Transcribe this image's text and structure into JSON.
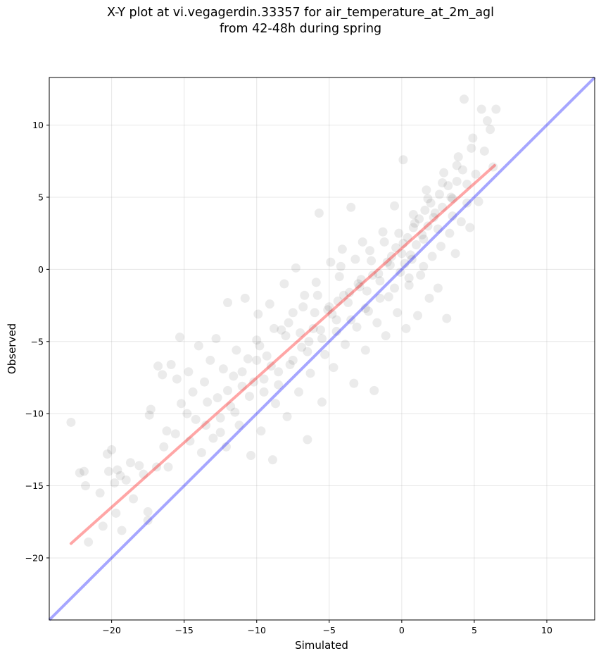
{
  "chart_data": {
    "type": "scatter",
    "title": "X-Y plot at vi.vegagerdin.33357 for air_temperature_at_2m_agl",
    "subtitle": "from 42-48h during spring",
    "xlabel": "Simulated",
    "ylabel": "Observed",
    "xlim": [
      -24.3,
      13.3
    ],
    "ylim": [
      -24.3,
      13.3
    ],
    "x_ticks": [
      -20,
      -15,
      -10,
      -5,
      0,
      5,
      10
    ],
    "y_ticks": [
      -20,
      -15,
      -10,
      -5,
      0,
      5,
      10
    ],
    "x_tick_labels": [
      "−20",
      "−15",
      "−10",
      "−5",
      "0",
      "5",
      "10"
    ],
    "y_tick_labels": [
      "−20",
      "−15",
      "−10",
      "−5",
      "0",
      "5",
      "10"
    ],
    "grid": true,
    "legend": "none",
    "point_color": "#000000",
    "point_alpha": 0.08,
    "fit_line": {
      "color": "#ff0000",
      "x": [
        -22.8,
        6.4
      ],
      "y": [
        -19.0,
        7.2
      ]
    },
    "identity_line": {
      "color": "#0000ff",
      "x": [
        -24.3,
        13.3
      ],
      "y": [
        -24.3,
        13.3
      ]
    },
    "points": [
      [
        -22.8,
        -10.6
      ],
      [
        -22.2,
        -14.1
      ],
      [
        -21.9,
        -14.0
      ],
      [
        -21.8,
        -15.0
      ],
      [
        -21.6,
        -18.9
      ],
      [
        -20.8,
        -15.5
      ],
      [
        -20.6,
        -17.8
      ],
      [
        -20.3,
        -12.8
      ],
      [
        -20.2,
        -14.0
      ],
      [
        -20.0,
        -12.5
      ],
      [
        -19.8,
        -14.8
      ],
      [
        -19.7,
        -16.9
      ],
      [
        -19.6,
        -13.9
      ],
      [
        -19.4,
        -14.3
      ],
      [
        -19.3,
        -18.1
      ],
      [
        -19.0,
        -14.6
      ],
      [
        -18.7,
        -13.4
      ],
      [
        -18.5,
        -15.9
      ],
      [
        -18.1,
        -13.6
      ],
      [
        -17.8,
        -14.2
      ],
      [
        -17.5,
        -16.8
      ],
      [
        -17.5,
        -17.4
      ],
      [
        -17.4,
        -10.1
      ],
      [
        -17.3,
        -9.7
      ],
      [
        -16.9,
        -13.7
      ],
      [
        -16.8,
        -6.7
      ],
      [
        -16.5,
        -7.3
      ],
      [
        -16.4,
        -12.3
      ],
      [
        -16.2,
        -11.2
      ],
      [
        -16.1,
        -13.7
      ],
      [
        -15.9,
        -6.6
      ],
      [
        -15.6,
        -11.4
      ],
      [
        -15.5,
        -7.6
      ],
      [
        -15.3,
        -4.7
      ],
      [
        -15.2,
        -9.3
      ],
      [
        -14.8,
        -10.0
      ],
      [
        -14.7,
        -7.1
      ],
      [
        -14.6,
        -11.9
      ],
      [
        -14.4,
        -8.5
      ],
      [
        -14.2,
        -10.4
      ],
      [
        -14.0,
        -5.3
      ],
      [
        -13.8,
        -12.7
      ],
      [
        -13.6,
        -7.8
      ],
      [
        -13.4,
        -9.2
      ],
      [
        -13.2,
        -6.3
      ],
      [
        -13.0,
        -11.7
      ],
      [
        -12.8,
        -4.8
      ],
      [
        -12.7,
        -8.9
      ],
      [
        -12.5,
        -10.3
      ],
      [
        -12.3,
        -6.9
      ],
      [
        -12.1,
        -12.3
      ],
      [
        -12.0,
        -2.3
      ],
      [
        -11.8,
        -9.5
      ],
      [
        -11.6,
        -7.4
      ],
      [
        -11.4,
        -5.6
      ],
      [
        -11.2,
        -10.8
      ],
      [
        -11.0,
        -8.1
      ],
      [
        -10.8,
        -2.0
      ],
      [
        -10.6,
        -6.2
      ],
      [
        -10.4,
        -12.9
      ],
      [
        -10.2,
        -7.8
      ],
      [
        -10.0,
        -4.9
      ],
      [
        -9.9,
        -3.1
      ],
      [
        -9.7,
        -11.2
      ],
      [
        -9.5,
        -8.5
      ],
      [
        -9.3,
        -6.0
      ],
      [
        -9.1,
        -2.4
      ],
      [
        -8.9,
        -13.2
      ],
      [
        -8.7,
        -9.3
      ],
      [
        -8.5,
        -7.1
      ],
      [
        -8.3,
        -4.2
      ],
      [
        -8.1,
        -1.0
      ],
      [
        -7.9,
        -10.2
      ],
      [
        -7.7,
        -6.6
      ],
      [
        -7.5,
        -3.0
      ],
      [
        -7.3,
        0.1
      ],
      [
        -7.1,
        -8.5
      ],
      [
        -6.9,
        -5.4
      ],
      [
        -6.7,
        -1.8
      ],
      [
        -6.5,
        -11.8
      ],
      [
        -6.3,
        -7.2
      ],
      [
        -6.1,
        -4.1
      ],
      [
        -5.9,
        -0.9
      ],
      [
        -5.7,
        3.9
      ],
      [
        -5.5,
        -9.2
      ],
      [
        -5.3,
        -5.9
      ],
      [
        -5.1,
        -2.8
      ],
      [
        -4.9,
        0.5
      ],
      [
        -4.7,
        -6.8
      ],
      [
        -4.5,
        -3.5
      ],
      [
        -4.3,
        -0.5
      ],
      [
        -4.1,
        1.4
      ],
      [
        -3.9,
        -5.2
      ],
      [
        -3.7,
        -2.3
      ],
      [
        -3.5,
        4.3
      ],
      [
        -3.3,
        -7.9
      ],
      [
        -3.1,
        -4.0
      ],
      [
        -2.9,
        -1.2
      ],
      [
        -2.7,
        1.9
      ],
      [
        -2.5,
        -5.6
      ],
      [
        -2.3,
        -2.9
      ],
      [
        -2.1,
        0.6
      ],
      [
        -1.9,
        -8.4
      ],
      [
        -1.7,
        -3.7
      ],
      [
        -1.5,
        -0.8
      ],
      [
        -1.3,
        2.6
      ],
      [
        -1.1,
        -4.6
      ],
      [
        -0.9,
        -1.9
      ],
      [
        -0.7,
        0.9
      ],
      [
        -0.5,
        4.4
      ],
      [
        -0.3,
        -3.0
      ],
      [
        -0.1,
        -0.2
      ],
      [
        0.1,
        1.8
      ],
      [
        0.1,
        7.6
      ],
      [
        0.3,
        -4.1
      ],
      [
        0.5,
        -1.1
      ],
      [
        0.7,
        0.7
      ],
      [
        0.9,
        3.2
      ],
      [
        1.1,
        -3.2
      ],
      [
        1.3,
        -0.4
      ],
      [
        1.5,
        2.1
      ],
      [
        1.7,
        5.5
      ],
      [
        1.9,
        -2.0
      ],
      [
        2.1,
        0.9
      ],
      [
        2.3,
        3.9
      ],
      [
        2.5,
        -1.3
      ],
      [
        2.7,
        1.6
      ],
      [
        2.9,
        6.7
      ],
      [
        3.1,
        -3.4
      ],
      [
        3.3,
        2.5
      ],
      [
        3.5,
        4.9
      ],
      [
        3.7,
        1.1
      ],
      [
        3.9,
        7.8
      ],
      [
        4.1,
        3.3
      ],
      [
        4.3,
        11.8
      ],
      [
        4.5,
        5.9
      ],
      [
        4.7,
        2.9
      ],
      [
        4.9,
        9.1
      ],
      [
        5.1,
        6.6
      ],
      [
        5.3,
        4.7
      ],
      [
        5.5,
        11.1
      ],
      [
        5.7,
        8.2
      ],
      [
        5.9,
        10.3
      ],
      [
        6.1,
        9.7
      ],
      [
        6.3,
        7.1
      ],
      [
        6.5,
        11.1
      ],
      [
        -12.0,
        -8.4
      ],
      [
        -11.0,
        -7.1
      ],
      [
        -10.0,
        -6.3
      ],
      [
        -9.0,
        -6.7
      ],
      [
        -8.0,
        -4.6
      ],
      [
        -7.0,
        -4.4
      ],
      [
        -6.0,
        -3.0
      ],
      [
        -5.0,
        -2.6
      ],
      [
        -4.0,
        -1.8
      ],
      [
        -3.0,
        -1.0
      ],
      [
        -2.0,
        -0.4
      ],
      [
        -1.0,
        0.5
      ],
      [
        0.0,
        1.1
      ],
      [
        0.4,
        2.2
      ],
      [
        0.8,
        2.9
      ],
      [
        1.2,
        3.5
      ],
      [
        1.6,
        4.1
      ],
      [
        2.0,
        4.6
      ],
      [
        2.6,
        5.2
      ],
      [
        3.2,
        5.8
      ],
      [
        -6.4,
        -5.0
      ],
      [
        -5.6,
        -4.2
      ],
      [
        -4.8,
        -3.1
      ],
      [
        -4.4,
        -2.2
      ],
      [
        -3.6,
        -1.6
      ],
      [
        -2.8,
        -0.7
      ],
      [
        -2.4,
        -1.5
      ],
      [
        -1.6,
        -0.3
      ],
      [
        -0.8,
        0.3
      ],
      [
        -0.4,
        1.5
      ],
      [
        0.2,
        0.4
      ],
      [
        0.6,
        1.0
      ],
      [
        1.0,
        1.7
      ],
      [
        1.4,
        2.4
      ],
      [
        1.8,
        3.0
      ],
      [
        2.2,
        3.6
      ],
      [
        2.8,
        4.3
      ],
      [
        3.4,
        5.0
      ],
      [
        3.8,
        6.1
      ],
      [
        4.2,
        6.9
      ],
      [
        -13.5,
        -10.8
      ],
      [
        -12.5,
        -11.3
      ],
      [
        -11.5,
        -9.9
      ],
      [
        -10.5,
        -8.8
      ],
      [
        -9.5,
        -7.6
      ],
      [
        -8.5,
        -8.0
      ],
      [
        -7.5,
        -6.3
      ],
      [
        -6.5,
        -5.7
      ],
      [
        -5.5,
        -4.8
      ],
      [
        -4.5,
        -4.3
      ],
      [
        -3.5,
        -3.5
      ],
      [
        -2.5,
        -2.7
      ],
      [
        -1.5,
        -2.0
      ],
      [
        -0.5,
        -1.3
      ],
      [
        0.5,
        -0.6
      ],
      [
        1.5,
        0.2
      ],
      [
        2.5,
        2.8
      ],
      [
        3.5,
        3.7
      ],
      [
        4.5,
        4.6
      ],
      [
        -9.8,
        -5.3
      ],
      [
        -8.8,
        -4.1
      ],
      [
        -7.8,
        -3.7
      ],
      [
        -6.8,
        -2.6
      ],
      [
        -5.8,
        -1.8
      ],
      [
        -4.2,
        0.2
      ],
      [
        -3.2,
        0.7
      ],
      [
        -2.2,
        1.3
      ],
      [
        -1.2,
        1.9
      ],
      [
        -0.2,
        2.5
      ],
      [
        0.8,
        3.8
      ],
      [
        1.8,
        4.9
      ],
      [
        2.8,
        6.0
      ],
      [
        3.8,
        7.2
      ],
      [
        4.8,
        8.4
      ]
    ]
  }
}
